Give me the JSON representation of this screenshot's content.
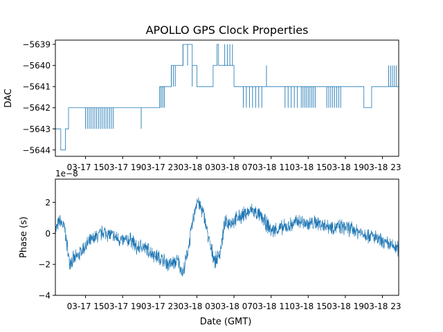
{
  "figure": {
    "title": "APOLLO GPS Clock Properties",
    "series_color": "#1f77b4"
  },
  "chart_data": [
    {
      "type": "line",
      "ylabel": "DAC",
      "xlabel": "",
      "grid": false,
      "xlim": [
        "2023-03-17 11:45",
        "2023-03-19 00:45"
      ],
      "ylim": [
        -5644.3,
        -5638.8
      ],
      "yticks": [
        -5644,
        -5643,
        -5642,
        -5641,
        -5640,
        -5639
      ],
      "ytick_labels": [
        "−5644",
        "−5643",
        "−5642",
        "−5641",
        "−5640",
        "−5639"
      ],
      "xtick_labels": [
        "03-17 15",
        "03-17 19",
        "03-17 23",
        "03-18 03",
        "03-18 07",
        "03-18 11",
        "03-18 15",
        "03-18 19",
        "03-18 23"
      ],
      "series": [
        {
          "steps": [
            [
              "2023-03-17 11:45",
              -5643
            ],
            [
              "2023-03-17 12:20",
              -5644
            ],
            [
              "2023-03-17 12:50",
              -5643
            ],
            [
              "2023-03-17 13:10",
              -5642
            ],
            [
              "2023-03-17 23:00",
              -5641
            ],
            [
              "2023-03-18 00:15",
              -5640
            ],
            [
              "2023-03-18 01:30",
              -5639
            ],
            [
              "2023-03-18 02:30",
              -5640
            ],
            [
              "2023-03-18 03:00",
              -5641
            ],
            [
              "2023-03-18 04:45",
              -5640
            ],
            [
              "2023-03-18 05:10",
              -5639
            ],
            [
              "2023-03-18 05:20",
              -5640
            ],
            [
              "2023-03-18 07:00",
              -5641
            ],
            [
              "2023-03-18 21:00",
              -5642
            ],
            [
              "2023-03-18 21:50",
              -5641
            ],
            [
              "2023-03-19 00:45",
              -5641
            ]
          ],
          "spikes": [
            {
              "from": "2023-03-17 15:00",
              "to": "2023-03-17 18:00",
              "delta": -1,
              "count": 16
            },
            {
              "from": "2023-03-17 21:00",
              "to": "2023-03-17 21:10",
              "delta": -1,
              "count": 1
            },
            {
              "from": "2023-03-17 23:00",
              "to": "2023-03-17 23:30",
              "delta": -1,
              "count": 4
            },
            {
              "from": "2023-03-18 00:15",
              "to": "2023-03-18 00:40",
              "delta": -1,
              "count": 3
            },
            {
              "from": "2023-03-18 01:30",
              "to": "2023-03-18 02:30",
              "delta": -1,
              "count": 3
            },
            {
              "from": "2023-03-18 06:00",
              "to": "2023-03-18 06:50",
              "delta": 1,
              "count": 4
            },
            {
              "from": "2023-03-18 08:00",
              "to": "2023-03-18 10:00",
              "delta": -1,
              "count": 7
            },
            {
              "from": "2023-03-18 10:30",
              "to": "2023-03-18 10:40",
              "delta": 1,
              "count": 1
            },
            {
              "from": "2023-03-18 12:30",
              "to": "2023-03-18 13:50",
              "delta": -1,
              "count": 5
            },
            {
              "from": "2023-03-18 14:15",
              "to": "2023-03-18 15:45",
              "delta": -1,
              "count": 9
            },
            {
              "from": "2023-03-18 17:00",
              "to": "2023-03-18 18:30",
              "delta": -1,
              "count": 8
            },
            {
              "from": "2023-03-18 23:40",
              "to": "2023-03-19 00:30",
              "delta": 1,
              "count": 5
            }
          ]
        }
      ]
    },
    {
      "type": "line",
      "ylabel": "Phase (s)",
      "xlabel": "Date (GMT)",
      "grid": false,
      "offset_text": "1e−8",
      "xlim": [
        "2023-03-17 11:45",
        "2023-03-19 00:45"
      ],
      "ylim": [
        -4e-08,
        3.5e-08
      ],
      "yticks": [
        -4e-08,
        -2e-08,
        0,
        2e-08
      ],
      "ytick_labels": [
        "−4",
        "−2",
        "0",
        "2"
      ],
      "xtick_labels": [
        "03-17 15",
        "03-17 19",
        "03-17 23",
        "03-18 03",
        "03-18 07",
        "03-18 11",
        "03-18 15",
        "03-18 19",
        "03-18 23"
      ],
      "series": [
        {
          "x": [
            "2023-03-17 11:45",
            "2023-03-17 12:15",
            "2023-03-17 12:45",
            "2023-03-17 13:15",
            "2023-03-17 14:00",
            "2023-03-17 15:00",
            "2023-03-17 16:00",
            "2023-03-17 17:00",
            "2023-03-17 18:00",
            "2023-03-17 19:00",
            "2023-03-17 20:00",
            "2023-03-17 20:30",
            "2023-03-17 21:00",
            "2023-03-17 22:00",
            "2023-03-17 23:00",
            "2023-03-18 00:00",
            "2023-03-18 01:00",
            "2023-03-18 01:30",
            "2023-03-18 02:00",
            "2023-03-18 03:00",
            "2023-03-18 03:45",
            "2023-03-18 04:30",
            "2023-03-18 05:00",
            "2023-03-18 05:30",
            "2023-03-18 06:00",
            "2023-03-18 07:00",
            "2023-03-18 08:00",
            "2023-03-18 09:00",
            "2023-03-18 10:00",
            "2023-03-18 11:00",
            "2023-03-18 12:00",
            "2023-03-18 13:00",
            "2023-03-18 14:00",
            "2023-03-18 15:00",
            "2023-03-18 16:00",
            "2023-03-18 17:00",
            "2023-03-18 18:00",
            "2023-03-18 19:00",
            "2023-03-18 20:00",
            "2023-03-18 21:00",
            "2023-03-18 22:00",
            "2023-03-18 23:00",
            "2023-03-19 00:00",
            "2023-03-19 00:45"
          ],
          "y": [
            2e-09,
            8e-09,
            3e-09,
            -1.8e-08,
            -1.6e-08,
            -8e-09,
            -3e-09,
            1e-09,
            -2e-09,
            -5e-09,
            -4e-09,
            -1e-08,
            -8e-09,
            -1.2e-08,
            -1.6e-08,
            -2e-08,
            -1.8e-08,
            -2.6e-08,
            -1.2e-08,
            2.2e-08,
            1.2e-08,
            -1e-08,
            -1.8e-08,
            -1.2e-08,
            6e-09,
            8e-09,
            1.2e-08,
            1.5e-08,
            1e-08,
            2e-09,
            3e-09,
            5e-09,
            8e-09,
            6e-09,
            7e-09,
            5e-09,
            4e-09,
            4e-09,
            2e-09,
            0.0,
            -2e-09,
            -6e-09,
            -8e-09,
            -1e-08
          ],
          "noise_amplitude": 6e-09
        }
      ]
    }
  ]
}
